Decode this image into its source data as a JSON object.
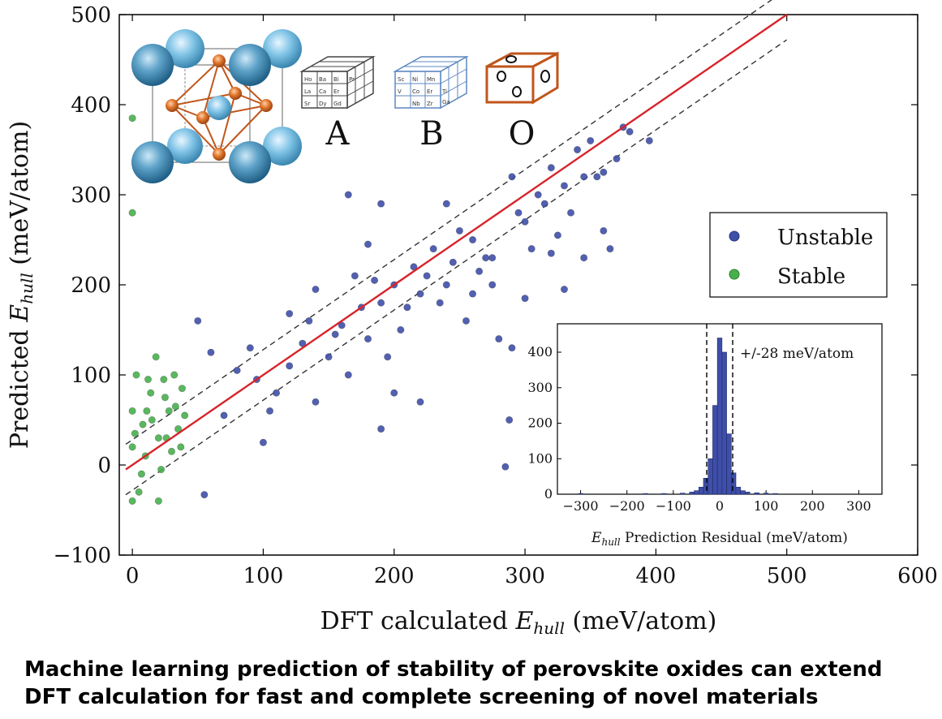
{
  "chart_data": [
    {
      "type": "scatter",
      "xlabel": "DFT calculated",
      "ylabel": "Predicted",
      "label_symbol": "E",
      "label_subscript": "hull",
      "label_unit": "(meV/atom)",
      "xlim": [
        -10,
        600
      ],
      "ylim": [
        -100,
        500
      ],
      "xticks": [
        "0",
        "100",
        "200",
        "300",
        "400",
        "500",
        "600"
      ],
      "yticks": [
        "−100",
        "0",
        "100",
        "200",
        "300",
        "400",
        "500"
      ],
      "xtick_values": [
        0,
        100,
        200,
        300,
        400,
        500,
        600
      ],
      "ytick_values": [
        -100,
        0,
        100,
        200,
        300,
        400,
        500
      ],
      "legend": {
        "position": "right",
        "entries": [
          "Unstable",
          "Stable"
        ]
      },
      "series": [
        {
          "name": "Unstable",
          "color": "#3f4fa8",
          "points": [
            [
              55,
              -33
            ],
            [
              60,
              125
            ],
            [
              80,
              105
            ],
            [
              95,
              95
            ],
            [
              100,
              25
            ],
            [
              105,
              60
            ],
            [
              120,
              110
            ],
            [
              130,
              135
            ],
            [
              140,
              70
            ],
            [
              150,
              120
            ],
            [
              160,
              155
            ],
            [
              165,
              100
            ],
            [
              170,
              210
            ],
            [
              180,
              140
            ],
            [
              190,
              180
            ],
            [
              195,
              120
            ],
            [
              200,
              200
            ],
            [
              210,
              175
            ],
            [
              220,
              190
            ],
            [
              230,
              240
            ],
            [
              240,
              200
            ],
            [
              245,
              225
            ],
            [
              250,
              260
            ],
            [
              255,
              160
            ],
            [
              260,
              250
            ],
            [
              270,
              230
            ],
            [
              280,
              140
            ],
            [
              285,
              -2
            ],
            [
              288,
              50
            ],
            [
              290,
              320
            ],
            [
              295,
              280
            ],
            [
              300,
              270
            ],
            [
              305,
              240
            ],
            [
              310,
              300
            ],
            [
              320,
              330
            ],
            [
              330,
              310
            ],
            [
              340,
              350
            ],
            [
              350,
              360
            ],
            [
              360,
              260
            ],
            [
              370,
              340
            ],
            [
              380,
              370
            ],
            [
              395,
              360
            ],
            [
              165,
              300
            ],
            [
              190,
              290
            ],
            [
              240,
              290
            ],
            [
              275,
              230
            ],
            [
              290,
              130
            ],
            [
              320,
              235
            ],
            [
              345,
              230
            ],
            [
              360,
              325
            ],
            [
              190,
              40
            ],
            [
              200,
              80
            ],
            [
              220,
              70
            ],
            [
              260,
              190
            ],
            [
              300,
              185
            ],
            [
              330,
              195
            ],
            [
              365,
              240
            ],
            [
              120,
              168
            ],
            [
              140,
              195
            ],
            [
              180,
              245
            ],
            [
              215,
              220
            ],
            [
              235,
              180
            ],
            [
              265,
              215
            ],
            [
              315,
              290
            ],
            [
              345,
              320
            ],
            [
              375,
              375
            ],
            [
              50,
              160
            ],
            [
              70,
              55
            ],
            [
              90,
              130
            ],
            [
              110,
              80
            ],
            [
              135,
              160
            ],
            [
              155,
              145
            ],
            [
              175,
              175
            ],
            [
              185,
              205
            ],
            [
              205,
              150
            ],
            [
              225,
              210
            ],
            [
              275,
              200
            ],
            [
              325,
              255
            ],
            [
              335,
              280
            ],
            [
              355,
              320
            ]
          ]
        },
        {
          "name": "Stable",
          "color": "#47b04c",
          "points": [
            [
              0,
              385
            ],
            [
              0,
              280
            ],
            [
              0,
              -40
            ],
            [
              0,
              20
            ],
            [
              0,
              60
            ],
            [
              5,
              -30
            ],
            [
              8,
              45
            ],
            [
              10,
              10
            ],
            [
              12,
              95
            ],
            [
              15,
              50
            ],
            [
              18,
              120
            ],
            [
              20,
              30
            ],
            [
              22,
              -5
            ],
            [
              25,
              75
            ],
            [
              28,
              60
            ],
            [
              30,
              15
            ],
            [
              32,
              100
            ],
            [
              35,
              40
            ],
            [
              38,
              85
            ],
            [
              40,
              55
            ],
            [
              3,
              100
            ],
            [
              7,
              -10
            ],
            [
              14,
              80
            ],
            [
              20,
              -40
            ],
            [
              26,
              30
            ],
            [
              33,
              65
            ],
            [
              37,
              20
            ],
            [
              2,
              35
            ],
            [
              11,
              60
            ],
            [
              24,
              95
            ]
          ]
        }
      ],
      "fit_line": {
        "from": [
          -5,
          -5
        ],
        "to": [
          500,
          500
        ],
        "color": "#d8232a"
      },
      "band": {
        "offset": 28,
        "label": "+/-28 meV/atom"
      }
    },
    {
      "type": "bar",
      "xlabel": "Prediction Residual (meV/atom)",
      "label_symbol": "E",
      "label_subscript": "hull",
      "xlim": [
        -350,
        350
      ],
      "ylim": [
        0,
        480
      ],
      "xticks": [
        "−300",
        "−200",
        "−100",
        "0",
        "100",
        "200",
        "300"
      ],
      "yticks": [
        "0",
        "100",
        "200",
        "300",
        "400"
      ],
      "xtick_values": [
        -300,
        -200,
        -100,
        0,
        100,
        200,
        300
      ],
      "ytick_values": [
        0,
        100,
        200,
        300,
        400
      ],
      "color": "#3f4fa8",
      "bin_centers": [
        -300,
        -160,
        -120,
        -80,
        -60,
        -50,
        -40,
        -30,
        -20,
        -10,
        0,
        10,
        20,
        30,
        40,
        50,
        60,
        80,
        100,
        120
      ],
      "values": [
        2,
        2,
        2,
        3,
        6,
        10,
        20,
        45,
        100,
        250,
        440,
        400,
        170,
        60,
        20,
        10,
        6,
        4,
        3,
        2
      ],
      "vlines": [
        -28,
        28
      ],
      "annotation": "+/-28 meV/atom"
    }
  ],
  "structure": {
    "site_labels": [
      "A",
      "B",
      "O"
    ],
    "cube_a_elements": [
      "Ho",
      "Ba",
      "Bi",
      "La",
      "Ca",
      "Er",
      "Pr",
      "Sr",
      "Dy",
      "Gd"
    ],
    "cube_b_elements": [
      "Ni",
      "Mn",
      "Co",
      "Er",
      "Ti",
      "Nb",
      "Zr",
      "Ga",
      "Sc",
      "V"
    ]
  },
  "caption": {
    "line1": "Machine learning prediction of stability of perovskite oxides can extend",
    "line2": "DFT calculation for fast and complete screening of novel materials"
  }
}
